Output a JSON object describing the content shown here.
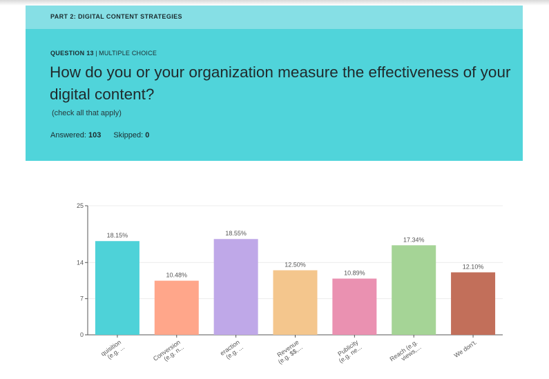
{
  "header": {
    "part_title": "PART 2: DIGITAL CONTENT STRATEGIES",
    "question_number": "QUESTION 13",
    "separator": " | ",
    "question_type": "MULTIPLE CHOICE",
    "question_text": "How do you or your organization measure the effectiveness of your digital content?",
    "note": "(check all that apply)",
    "answered_label": "Answered: ",
    "answered_value": "103",
    "skipped_label": "Skipped: ",
    "skipped_value": "0"
  },
  "colors": {
    "banner": "#86dfe5",
    "panel": "#50d4da"
  },
  "chart_data": {
    "type": "bar",
    "categories": [
      "quisition (e.g. ...",
      "Conversion (e.g. n...",
      "eraction (e.g. ...",
      "Revenue (e.g. $$,...",
      "Publicity (e.g. ne...",
      "Reach (e.g. views,...",
      "We don't."
    ],
    "values": [
      18.15,
      10.48,
      18.55,
      12.5,
      10.89,
      17.34,
      12.1
    ],
    "data_labels": [
      "18.15%",
      "10.48%",
      "18.55%",
      "12.50%",
      "10.89%",
      "17.34%",
      "12.10%"
    ],
    "colors": [
      "#4ed2d8",
      "#ffa68a",
      "#bfa8e8",
      "#f4c68d",
      "#ea91b1",
      "#a5d496",
      "#c26f5a"
    ],
    "yticks": [
      0,
      7,
      14,
      25
    ],
    "ylim": [
      0,
      25
    ],
    "title": "",
    "xlabel": "",
    "ylabel": "",
    "grid": true
  }
}
